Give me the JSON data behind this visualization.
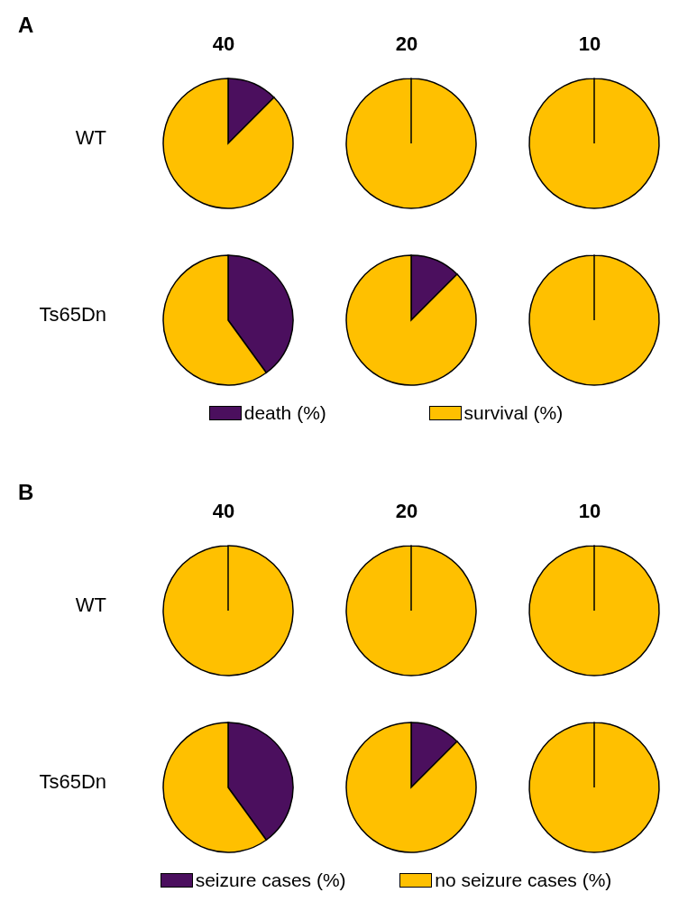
{
  "chart_data": [
    {
      "type": "pie",
      "title": "40",
      "ylabel": "WT",
      "annotations": [
        "A"
      ],
      "categories": [
        null,
        null
      ],
      "values": [
        12.5,
        87.5
      ],
      "colors": [
        "#4b0f5e",
        "#ffc000"
      ]
    },
    {
      "type": "pie",
      "title": "20",
      "categories": [
        null,
        null
      ],
      "values": [
        0,
        100
      ],
      "colors": [
        "#4b0f5e",
        "#ffc000"
      ]
    },
    {
      "type": "pie",
      "title": "10",
      "categories": [
        null,
        null
      ],
      "values": [
        0,
        100
      ],
      "colors": [
        "#4b0f5e",
        "#ffc000"
      ]
    },
    {
      "type": "pie",
      "ylabel": "Ts65Dn",
      "legend": "bottom",
      "categories": [
        "death (%)",
        "survival (%)"
      ],
      "values": [
        40,
        60
      ],
      "colors": [
        "#4b0f5e",
        "#ffc000"
      ]
    },
    {
      "type": "pie",
      "categories": [
        null,
        null
      ],
      "values": [
        12.5,
        87.5
      ],
      "colors": [
        "#4b0f5e",
        "#ffc000"
      ]
    },
    {
      "type": "pie",
      "categories": [
        null,
        null
      ],
      "values": [
        0,
        100
      ],
      "colors": [
        "#4b0f5e",
        "#ffc000"
      ]
    },
    {
      "type": "pie",
      "title": "40",
      "ylabel": "WT",
      "annotations": [
        "B"
      ],
      "categories": [
        null,
        null
      ],
      "values": [
        0,
        100
      ],
      "colors": [
        "#4b0f5e",
        "#ffc000"
      ]
    },
    {
      "type": "pie",
      "title": "20",
      "categories": [
        null,
        null
      ],
      "values": [
        0,
        100
      ],
      "colors": [
        "#4b0f5e",
        "#ffc000"
      ]
    },
    {
      "type": "pie",
      "title": "10",
      "categories": [
        null,
        null
      ],
      "values": [
        0,
        100
      ],
      "colors": [
        "#4b0f5e",
        "#ffc000"
      ]
    },
    {
      "type": "pie",
      "ylabel": "Ts65Dn",
      "legend": "bottom",
      "categories": [
        "seizure cases (%)",
        "no seizure cases (%)"
      ],
      "values": [
        40,
        60
      ],
      "colors": [
        "#4b0f5e",
        "#ffc000"
      ]
    },
    {
      "type": "pie",
      "categories": [
        null,
        null
      ],
      "values": [
        12.5,
        87.5
      ],
      "colors": [
        "#4b0f5e",
        "#ffc000"
      ]
    },
    {
      "type": "pie",
      "categories": [
        null,
        null
      ],
      "values": [
        0,
        100
      ],
      "colors": [
        "#4b0f5e",
        "#ffc000"
      ]
    }
  ]
}
